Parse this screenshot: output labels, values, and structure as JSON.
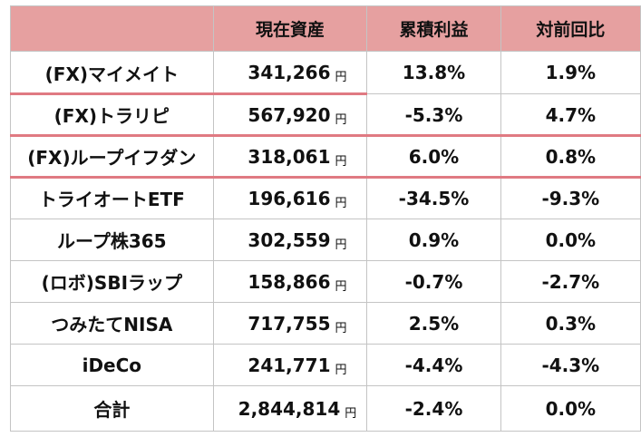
{
  "header": {
    "blank": "",
    "current_assets": "現在資産",
    "cumulative_return": "累積利益",
    "vs_previous": "対前回比"
  },
  "rows": [
    {
      "name": "(FX)マイメイト",
      "amount": "341,266",
      "currency": "円",
      "cumulative": "13.8%",
      "change": "1.9%",
      "underlined": true
    },
    {
      "name": "(FX)トラリピ",
      "amount": "567,920",
      "currency": "円",
      "cumulative": "-5.3%",
      "change": "4.7%",
      "underlined": true
    },
    {
      "name": "(FX)ループイフダン",
      "amount": "318,061",
      "currency": "円",
      "cumulative": "6.0%",
      "change": "0.8%",
      "underlined": true
    },
    {
      "name": "トライオートETF",
      "amount": "196,616",
      "currency": "円",
      "cumulative": "-34.5%",
      "change": "-9.3%",
      "underlined": false
    },
    {
      "name": "ループ株365",
      "amount": "302,559",
      "currency": "円",
      "cumulative": "0.9%",
      "change": "0.0%",
      "underlined": false
    },
    {
      "name": "(ロボ)SBIラップ",
      "amount": "158,866",
      "currency": "円",
      "cumulative": "-0.7%",
      "change": "-2.7%",
      "underlined": false
    },
    {
      "name": "つみたてNISA",
      "amount": "717,755",
      "currency": "円",
      "cumulative": "2.5%",
      "change": "0.3%",
      "underlined": false
    },
    {
      "name": "iDeCo",
      "amount": "241,771",
      "currency": "円",
      "cumulative": "-4.4%",
      "change": "-4.3%",
      "underlined": false
    }
  ],
  "total": {
    "name": "合計",
    "amount": "2,844,814",
    "currency": "円",
    "cumulative": "-2.4%",
    "change": "0.0%"
  },
  "colors": {
    "header_bg": "#e6a0a0",
    "highlight_underline": "#e07a82",
    "border": "#c4c4c4"
  }
}
